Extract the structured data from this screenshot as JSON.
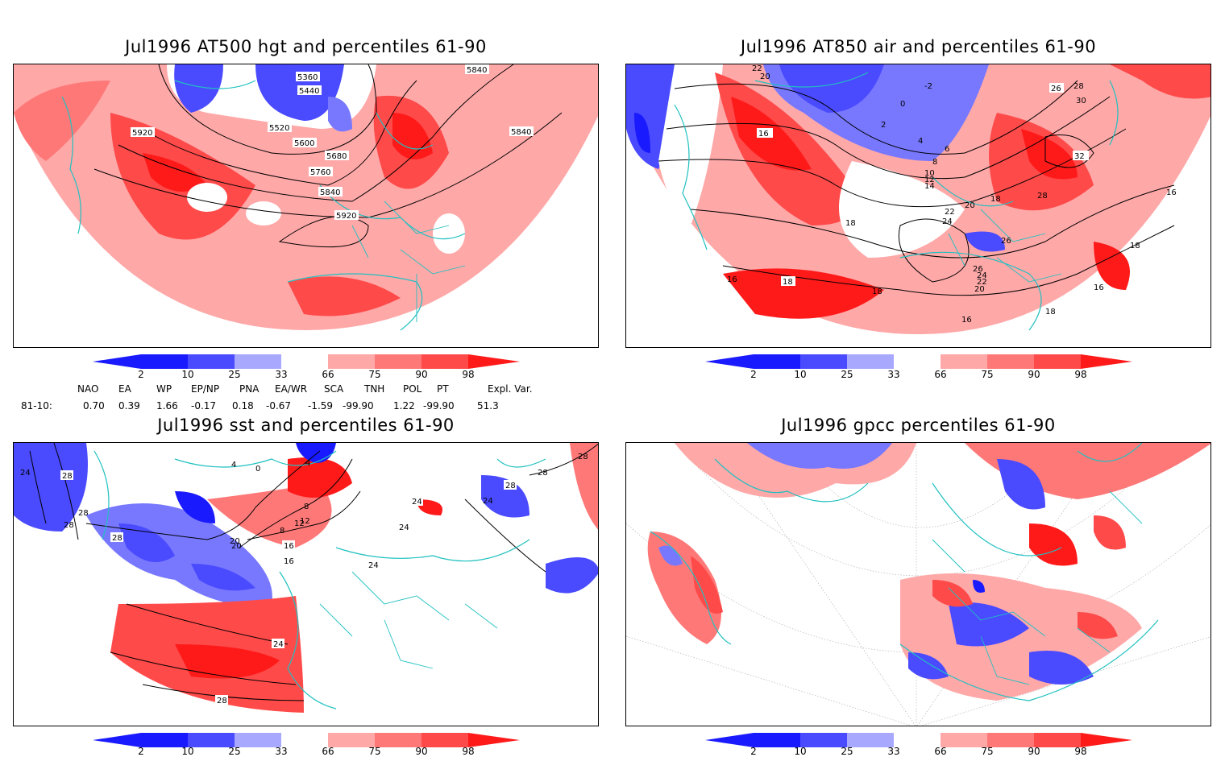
{
  "panels": [
    {
      "title": "Jul1996 AT500 hgt and percentiles 61-90",
      "contour_labels": [
        "5360",
        "5440",
        "5520",
        "5600",
        "5680",
        "5760",
        "5840",
        "5920",
        "5840",
        "5920",
        "5840"
      ]
    },
    {
      "title": "Jul1996 AT850 air and percentiles 61-90",
      "contour_labels": [
        "22",
        "20",
        "-2",
        "0",
        "2",
        "4",
        "6",
        "8",
        "10",
        "12",
        "14",
        "16",
        "18",
        "20",
        "22",
        "24",
        "26",
        "28",
        "30",
        "32",
        "16",
        "18",
        "16",
        "18",
        "26",
        "24",
        "22",
        "20",
        "18",
        "16",
        "18",
        "16",
        "28",
        "26",
        "18"
      ]
    },
    {
      "title": "Jul1996 sst and percentiles 61-90",
      "contour_labels": [
        "24",
        "28",
        "28",
        "28",
        "28",
        "4",
        "0",
        "4",
        "8",
        "12",
        "16",
        "20",
        "24",
        "24",
        "24",
        "28",
        "28",
        "24",
        "28",
        "16",
        "20",
        "8",
        "12",
        "24",
        "28"
      ]
    },
    {
      "title": "Jul1996 gpcc percentiles 61-90",
      "contour_labels": []
    }
  ],
  "colorbar": {
    "labels": [
      "2",
      "10",
      "25",
      "33",
      "66",
      "75",
      "90",
      "98"
    ],
    "colors": {
      "blue_dark": "#1a1aff",
      "blue_mid": "#4a4aff",
      "blue_light": "#7878ff",
      "blue_pale": "#a8a8ff",
      "red_pale": "#ffa8a8",
      "red_light": "#ff7878",
      "red_mid": "#ff4a4a",
      "red_dark": "#ff1a1a"
    }
  },
  "indices": {
    "headers": [
      "NAO",
      "EA",
      "WP",
      "EP/NP",
      "PNA",
      "EA/WR",
      "SCA",
      "TNH",
      "POL",
      "PT",
      "Expl. Var."
    ],
    "row_label": "81-10:",
    "values": [
      "0.70",
      "0.39",
      "1.66",
      "-0.17",
      "0.18",
      "-0.67",
      "-1.59",
      "-99.90",
      "1.22",
      "-99.90",
      "51.3"
    ]
  },
  "colors": {
    "coast": "#20c0c0",
    "contour": "#000000",
    "grid": "#aaaaaa"
  }
}
